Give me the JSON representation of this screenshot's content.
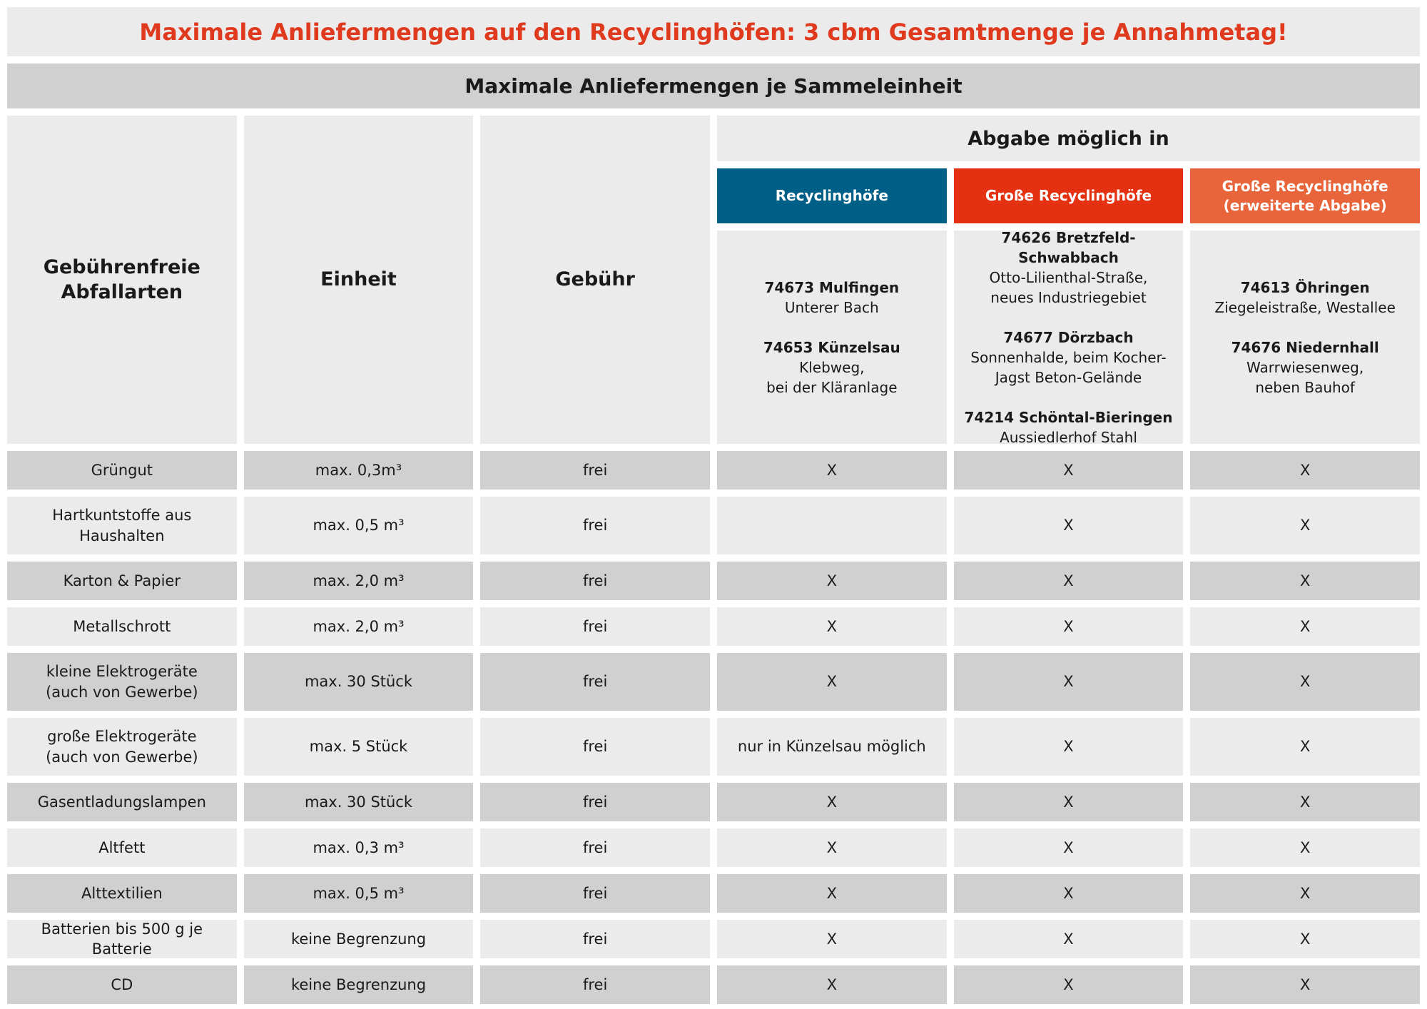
{
  "header": {
    "title": "Maximale Anliefermengen auf den Recyclinghöfen: 3 cbm Gesamtmenge je Annahmetag!",
    "subtitle": "Maximale Anliefermengen je Sammeleinheit"
  },
  "table": {
    "columns": [
      "Gebührenfreie\nAbfallarten",
      "Einheit",
      "Gebühr",
      "Abgabe möglich in"
    ],
    "locations": [
      {
        "name": "Recyclinghöfe",
        "sites": [
          {
            "place": "74673 Mulfingen",
            "street": "Unterer Bach"
          },
          {
            "place": "74653 Künzelsau",
            "street": "Klebweg,\nbei der Kläranlage"
          }
        ]
      },
      {
        "name": "Große Recyclinghöfe",
        "sites": [
          {
            "place": "74626 Bretzfeld-Schwabbach",
            "street": "Otto-Lilienthal-Straße,\nneues Industriegebiet"
          },
          {
            "place": "74677 Dörzbach",
            "street": "Sonnenhalde, beim Kocher-\nJagst Beton-Gelände"
          },
          {
            "place": "74214 Schöntal-Bieringen",
            "street": "Aussiedlerhof Stahl"
          }
        ]
      },
      {
        "name": "Große Recyclinghöfe\n(erweiterte Abgabe)",
        "sites": [
          {
            "place": "74613 Öhringen",
            "street": "Ziegeleistraße, Westallee"
          },
          {
            "place": "74676 Niedernhall",
            "street": "Warrwiesenweg,\nneben Bauhof"
          }
        ]
      }
    ],
    "location_colors": [
      "#005f87",
      "#e33112",
      "#e8643a"
    ],
    "rows": [
      [
        "Grüngut",
        "max. 0,3m³",
        "frei",
        "X",
        "X",
        "X"
      ],
      [
        "Hartkuntstoffe aus\nHaushalten",
        "max. 0,5 m³",
        "frei",
        null,
        "X",
        "X"
      ],
      [
        "Karton & Papier",
        "max. 2,0 m³",
        "frei",
        "X",
        "X",
        "X"
      ],
      [
        "Metallschrott",
        "max. 2,0 m³",
        "frei",
        "X",
        "X",
        "X"
      ],
      [
        "kleine Elektrogeräte\n(auch von Gewerbe)",
        "max. 30 Stück",
        "frei",
        "X",
        "X",
        "X"
      ],
      [
        "große Elektrogeräte\n(auch von Gewerbe)",
        "max. 5 Stück",
        "frei",
        "nur in Künzelsau möglich",
        "X",
        "X"
      ],
      [
        "Gasentladungslampen",
        "max. 30 Stück",
        "frei",
        "X",
        "X",
        "X"
      ],
      [
        "Altfett",
        "max. 0,3 m³",
        "frei",
        "X",
        "X",
        "X"
      ],
      [
        "Alttextilien",
        "max. 0,5 m³",
        "frei",
        "X",
        "X",
        "X"
      ],
      [
        "Batterien bis 500 g je Batterie",
        "keine Begrenzung",
        "frei",
        "X",
        "X",
        "X"
      ],
      [
        "CD",
        "keine Begrenzung",
        "frei",
        "X",
        "X",
        "X"
      ]
    ]
  }
}
